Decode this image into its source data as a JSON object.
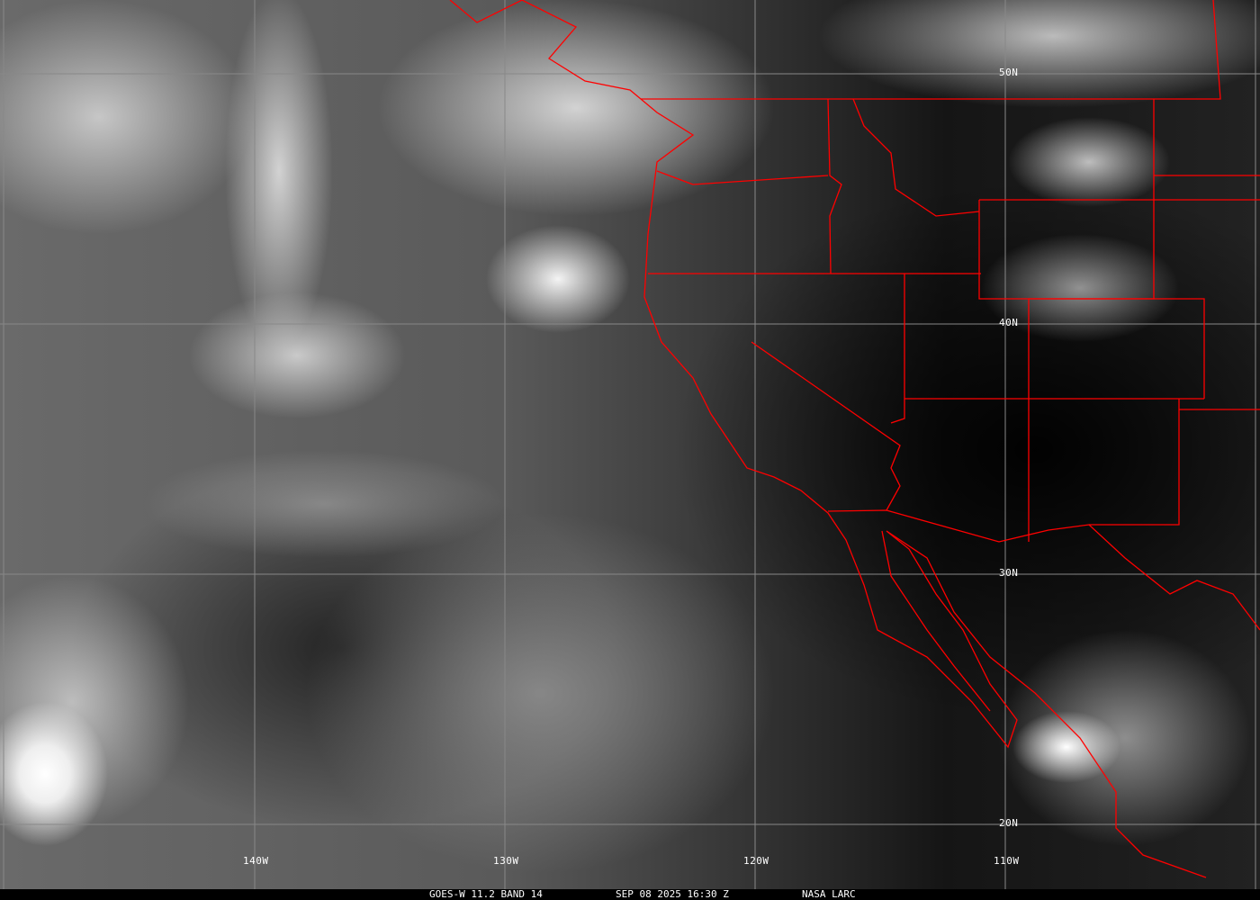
{
  "map": {
    "longitude_labels": [
      "140W",
      "130W",
      "120W",
      "110W"
    ],
    "latitude_labels": [
      "50N",
      "40N",
      "30N",
      "20N"
    ],
    "border_color": "#ff0000",
    "grid_color": "#888888"
  },
  "caption": {
    "satellite": "GOES-W 11.2 BAND 14",
    "datetime": "SEP 08 2025 16:30 Z",
    "credit": "NASA LARC"
  }
}
